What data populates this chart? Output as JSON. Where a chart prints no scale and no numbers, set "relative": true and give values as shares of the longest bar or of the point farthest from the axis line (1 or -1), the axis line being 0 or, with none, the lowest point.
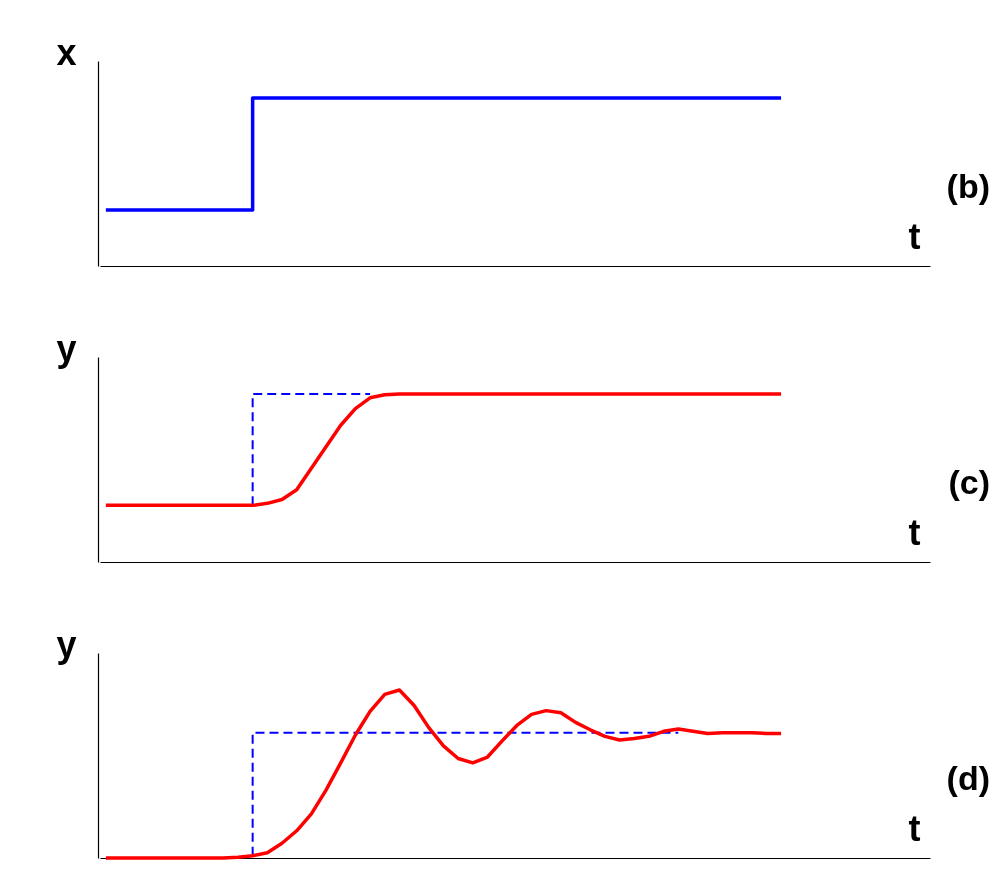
{
  "chart_data": [
    {
      "type": "step",
      "relative": true,
      "ylabel": "x",
      "xlabel": "t",
      "annotations": [
        "(b)"
      ],
      "categories": [
        null,
        null,
        null,
        null,
        null,
        null,
        null,
        null,
        null,
        null,
        null,
        null,
        null,
        null,
        null,
        null,
        null,
        null,
        null,
        null,
        null,
        null,
        null,
        null,
        null,
        null,
        null,
        null,
        null,
        null,
        null,
        null,
        null,
        null,
        null,
        null,
        null,
        null,
        null,
        null,
        null,
        null,
        null,
        null,
        null,
        null,
        null
      ],
      "series": [
        {
          "color": "#0000ff",
          "values": [
            0.333,
            0.333,
            0.333,
            0.333,
            0.333,
            0.333,
            0.333,
            0.333,
            0.333,
            0.333,
            0.333,
            1,
            1,
            1,
            1,
            1,
            1,
            1,
            1,
            1,
            1,
            1,
            1,
            1,
            1,
            1,
            1,
            1,
            1,
            1,
            1,
            1,
            1,
            1,
            1,
            1,
            1,
            1,
            1,
            1,
            1,
            1,
            1,
            1,
            1,
            1,
            1
          ]
        }
      ]
    },
    {
      "type": "line",
      "relative": true,
      "ylabel": "y",
      "xlabel": "t",
      "annotations": [
        "(c)"
      ],
      "categories": [
        null,
        null,
        null,
        null,
        null,
        null,
        null,
        null,
        null,
        null,
        null,
        null,
        null,
        null,
        null,
        null,
        null,
        null,
        null,
        null,
        null,
        null,
        null,
        null,
        null,
        null,
        null,
        null,
        null,
        null,
        null,
        null,
        null,
        null,
        null,
        null,
        null,
        null,
        null,
        null,
        null,
        null,
        null,
        null,
        null,
        null,
        null
      ],
      "series": [
        {
          "type": "step",
          "color": "#0000ff",
          "line_style": "dashed",
          "values": [
            null,
            null,
            null,
            null,
            null,
            null,
            null,
            null,
            null,
            null,
            0.337,
            1,
            1,
            1,
            1,
            1,
            1,
            1,
            1,
            null,
            null,
            null,
            null,
            null,
            null,
            null,
            null,
            null,
            null,
            null,
            null,
            null,
            null,
            null,
            null,
            null,
            null,
            null,
            null,
            null,
            null,
            null,
            null,
            null,
            null,
            null,
            null
          ]
        },
        {
          "color": "#ff0000",
          "values": [
            0.337,
            0.337,
            0.337,
            0.337,
            0.337,
            0.337,
            0.337,
            0.337,
            0.337,
            0.337,
            0.337,
            0.349,
            0.372,
            0.43,
            0.558,
            0.686,
            0.814,
            0.913,
            0.977,
            0.995,
            1,
            1,
            1,
            1,
            1,
            1,
            1,
            1,
            1,
            1,
            1,
            1,
            1,
            1,
            1,
            1,
            1,
            1,
            1,
            1,
            1,
            1,
            1,
            1,
            1,
            1,
            1
          ]
        }
      ]
    },
    {
      "type": "line",
      "relative": true,
      "ylabel": "y",
      "xlabel": "t",
      "annotations": [
        "(d)"
      ],
      "categories": [
        null,
        null,
        null,
        null,
        null,
        null,
        null,
        null,
        null,
        null,
        null,
        null,
        null,
        null,
        null,
        null,
        null,
        null,
        null,
        null,
        null,
        null,
        null,
        null,
        null,
        null,
        null,
        null,
        null,
        null,
        null,
        null,
        null,
        null,
        null,
        null,
        null,
        null,
        null,
        null,
        null,
        null,
        null,
        null,
        null,
        null,
        null
      ],
      "series": [
        {
          "type": "step",
          "color": "#0000ff",
          "line_style": "dashed",
          "values": [
            null,
            null,
            null,
            null,
            null,
            null,
            null,
            null,
            null,
            null,
            0.013,
            0.746,
            0.746,
            0.746,
            0.746,
            0.746,
            0.746,
            0.746,
            0.746,
            0.746,
            0.746,
            0.746,
            0.746,
            0.746,
            0.746,
            0.746,
            0.746,
            0.746,
            0.746,
            0.746,
            0.746,
            0.746,
            0.746,
            0.746,
            0.746,
            0.746,
            0.746,
            0.746,
            0.746,
            0.746,
            null,
            null,
            null,
            null,
            null,
            null,
            null
          ]
        },
        {
          "color": "#ff0000",
          "values": [
            0,
            0,
            0,
            0,
            0,
            0,
            0,
            0,
            0,
            0.005,
            0.013,
            0.031,
            0.088,
            0.162,
            0.263,
            0.404,
            0.566,
            0.732,
            0.873,
            0.974,
            1,
            0.908,
            0.776,
            0.667,
            0.592,
            0.566,
            0.601,
            0.697,
            0.789,
            0.855,
            0.877,
            0.864,
            0.807,
            0.763,
            0.724,
            0.702,
            0.711,
            0.724,
            0.754,
            0.768,
            0.754,
            0.741,
            0.746,
            0.746,
            0.746,
            0.741,
            0.741
          ]
        }
      ]
    }
  ]
}
